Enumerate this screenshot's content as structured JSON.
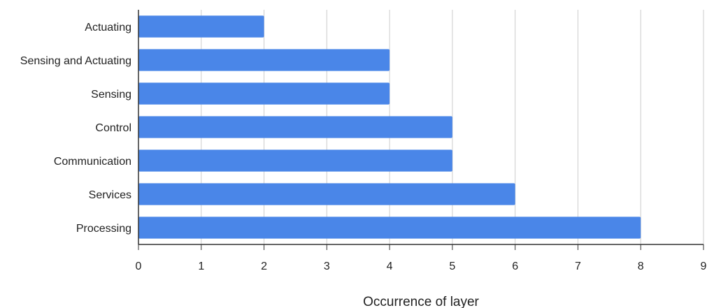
{
  "chart_data": {
    "type": "bar",
    "orientation": "horizontal",
    "categories": [
      "Actuating",
      "Sensing and Actuating",
      "Sensing",
      "Control",
      "Communication",
      "Services",
      "Processing"
    ],
    "values": [
      2,
      4,
      4,
      5,
      5,
      6,
      8
    ],
    "xlabel": "Occurrence of layer",
    "ylabel": "",
    "xlim": [
      0,
      9
    ],
    "xticks": [
      "0",
      "1",
      "2",
      "3",
      "4",
      "5",
      "6",
      "7",
      "8",
      "9"
    ],
    "grid": "vertical",
    "legend": "none",
    "bar_color": "#4a86e8"
  }
}
